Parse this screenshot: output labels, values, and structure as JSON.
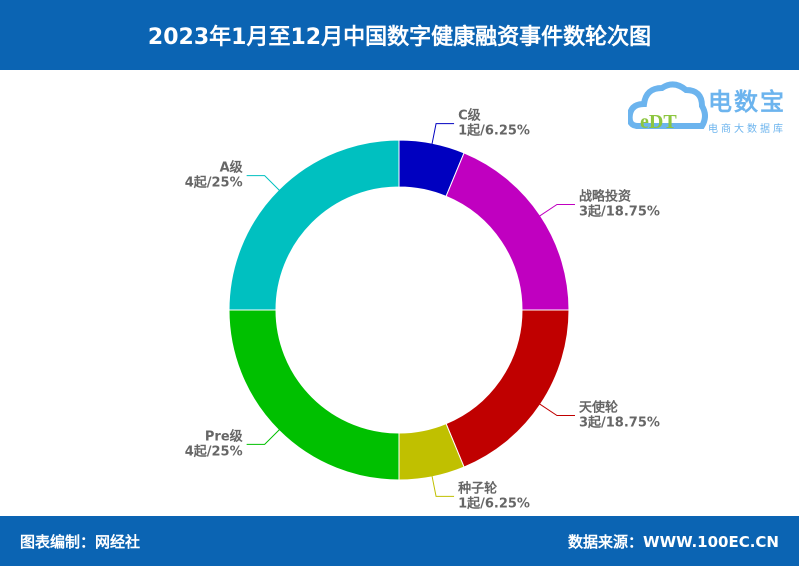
{
  "header": {
    "title": "2023年1月至12月中国数字健康融资事件数轮次图"
  },
  "footer": {
    "editor": "图表编制：网经社",
    "source": "数据来源：WWW.100EC.CN"
  },
  "logo": {
    "name": "电数宝",
    "subtitle": "电商大数据库",
    "mark": "eDT"
  },
  "chart_data": {
    "type": "pie",
    "donut": true,
    "title": "2023年1月至12月中国数字健康融资事件数轮次图",
    "start": "top",
    "direction": "clockwise",
    "slices": [
      {
        "name": "C级",
        "value": 1,
        "percent": "6.25%",
        "label2": "1起/6.25%",
        "color": "#0000c0"
      },
      {
        "name": "战略投资",
        "value": 3,
        "percent": "18.75%",
        "label2": "3起/18.75%",
        "color": "#c000c0"
      },
      {
        "name": "天使轮",
        "value": 3,
        "percent": "18.75%",
        "label2": "3起/18.75%",
        "color": "#c00000"
      },
      {
        "name": "种子轮",
        "value": 1,
        "percent": "6.25%",
        "label2": "1起/6.25%",
        "color": "#c0c000"
      },
      {
        "name": "Pre级",
        "value": 4,
        "percent": "25%",
        "label2": "4起/25%",
        "color": "#00c000"
      },
      {
        "name": "A级",
        "value": 4,
        "percent": "25%",
        "label2": "4起/25%",
        "color": "#00c0c0"
      }
    ]
  }
}
